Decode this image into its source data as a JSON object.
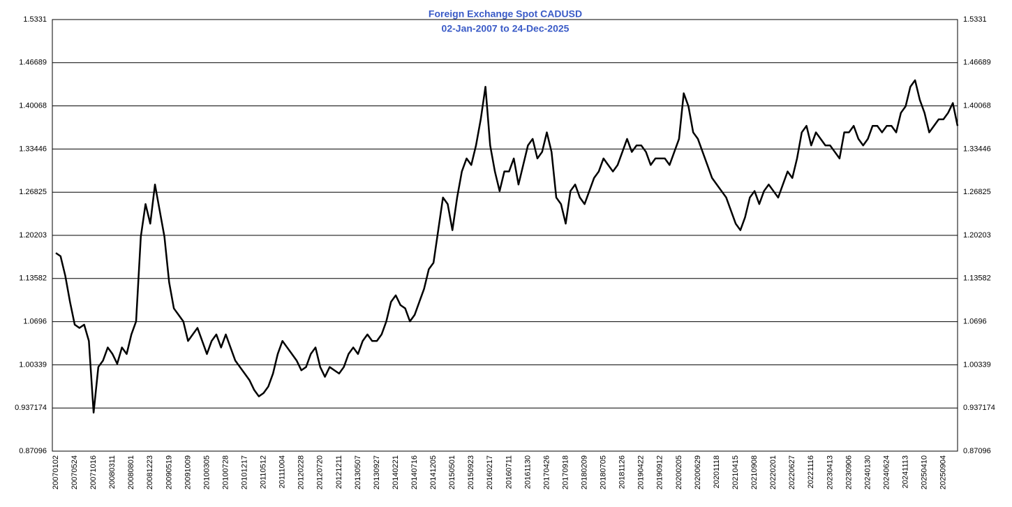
{
  "chart_data": {
    "type": "line",
    "title": "Foreign Exchange Spot CADUSD",
    "subtitle": "02-Jan-2007 to 24-Dec-2025",
    "categories": [
      "20070102",
      null,
      null,
      null,
      "20070524",
      null,
      null,
      null,
      "20071016",
      null,
      null,
      null,
      "20080311",
      null,
      null,
      null,
      "20080801",
      null,
      null,
      null,
      "20081223",
      null,
      null,
      null,
      "20090519",
      null,
      null,
      null,
      "20091009",
      null,
      null,
      null,
      "20100305",
      null,
      null,
      null,
      "20100728",
      null,
      null,
      null,
      "20101217",
      null,
      null,
      null,
      "20110512",
      null,
      null,
      null,
      "20111004",
      null,
      null,
      null,
      "20120228",
      null,
      null,
      null,
      "20120720",
      null,
      null,
      null,
      "20121211",
      null,
      null,
      null,
      "20130507",
      null,
      null,
      null,
      "20130927",
      null,
      null,
      null,
      "20140221",
      null,
      null,
      null,
      "20140716",
      null,
      null,
      null,
      "20141205",
      null,
      null,
      null,
      "20150501",
      null,
      null,
      null,
      "20150923",
      null,
      null,
      null,
      "20160217",
      null,
      null,
      null,
      "20160711",
      null,
      null,
      null,
      "20161130",
      null,
      null,
      null,
      "20170426",
      null,
      null,
      null,
      "20170918",
      null,
      null,
      null,
      "20180209",
      null,
      null,
      null,
      "20180705",
      null,
      null,
      null,
      "20181126",
      null,
      null,
      null,
      "20190422",
      null,
      null,
      null,
      "20190912",
      null,
      null,
      null,
      "20200205",
      null,
      null,
      null,
      "20200629",
      null,
      null,
      null,
      "20201118",
      null,
      null,
      null,
      "20210415",
      null,
      null,
      null,
      "20210908",
      null,
      null,
      null,
      "20220201",
      null,
      null,
      null,
      "20220627",
      null,
      null,
      null,
      "20221116",
      null,
      null,
      null,
      "20230413",
      null,
      null,
      null,
      "20230906",
      null,
      null,
      null,
      "20240130",
      null,
      null,
      null,
      "20240624",
      null,
      null,
      null,
      "20241113",
      null,
      null,
      null,
      "20250410",
      null,
      null,
      null,
      "20250904",
      null,
      null,
      null
    ],
    "series": [
      {
        "name": "CADUSD",
        "color": "#000000",
        "values": [
          1.175,
          1.17,
          1.14,
          1.1,
          1.065,
          1.06,
          1.065,
          1.04,
          0.93,
          1.0,
          1.01,
          1.03,
          1.02,
          1.005,
          1.03,
          1.02,
          1.05,
          1.07,
          1.2,
          1.25,
          1.22,
          1.28,
          1.24,
          1.2,
          1.13,
          1.09,
          1.08,
          1.07,
          1.04,
          1.05,
          1.06,
          1.04,
          1.02,
          1.04,
          1.05,
          1.03,
          1.05,
          1.03,
          1.01,
          1.0,
          0.99,
          0.98,
          0.965,
          0.955,
          0.96,
          0.97,
          0.99,
          1.02,
          1.04,
          1.03,
          1.02,
          1.01,
          0.995,
          1.0,
          1.02,
          1.03,
          1.0,
          0.985,
          1.0,
          0.995,
          0.99,
          1.0,
          1.02,
          1.03,
          1.02,
          1.04,
          1.05,
          1.04,
          1.04,
          1.05,
          1.07,
          1.1,
          1.11,
          1.095,
          1.09,
          1.07,
          1.08,
          1.1,
          1.12,
          1.15,
          1.16,
          1.21,
          1.26,
          1.25,
          1.21,
          1.26,
          1.3,
          1.32,
          1.31,
          1.34,
          1.38,
          1.43,
          1.34,
          1.3,
          1.27,
          1.3,
          1.3,
          1.32,
          1.28,
          1.31,
          1.34,
          1.35,
          1.32,
          1.33,
          1.36,
          1.33,
          1.26,
          1.25,
          1.22,
          1.27,
          1.28,
          1.26,
          1.25,
          1.27,
          1.29,
          1.3,
          1.32,
          1.31,
          1.3,
          1.31,
          1.33,
          1.35,
          1.33,
          1.34,
          1.34,
          1.33,
          1.31,
          1.32,
          1.32,
          1.32,
          1.31,
          1.33,
          1.35,
          1.42,
          1.4,
          1.36,
          1.35,
          1.33,
          1.31,
          1.29,
          1.28,
          1.27,
          1.26,
          1.24,
          1.22,
          1.21,
          1.23,
          1.26,
          1.27,
          1.25,
          1.27,
          1.28,
          1.27,
          1.26,
          1.28,
          1.3,
          1.29,
          1.32,
          1.36,
          1.37,
          1.34,
          1.36,
          1.35,
          1.34,
          1.34,
          1.33,
          1.32,
          1.36,
          1.36,
          1.37,
          1.35,
          1.34,
          1.35,
          1.37,
          1.37,
          1.36,
          1.37,
          1.37,
          1.36,
          1.39,
          1.4,
          1.43,
          1.44,
          1.41,
          1.39,
          1.36,
          1.37,
          1.38,
          1.38,
          1.39,
          1.405,
          1.37
        ]
      }
    ],
    "ylim": [
      0.87096,
      1.5331
    ],
    "yticks": [
      0.87096,
      0.937174,
      1.00339,
      1.0696,
      1.13582,
      1.20203,
      1.26825,
      1.33446,
      1.40068,
      1.46689,
      1.5331
    ],
    "grid": true
  }
}
